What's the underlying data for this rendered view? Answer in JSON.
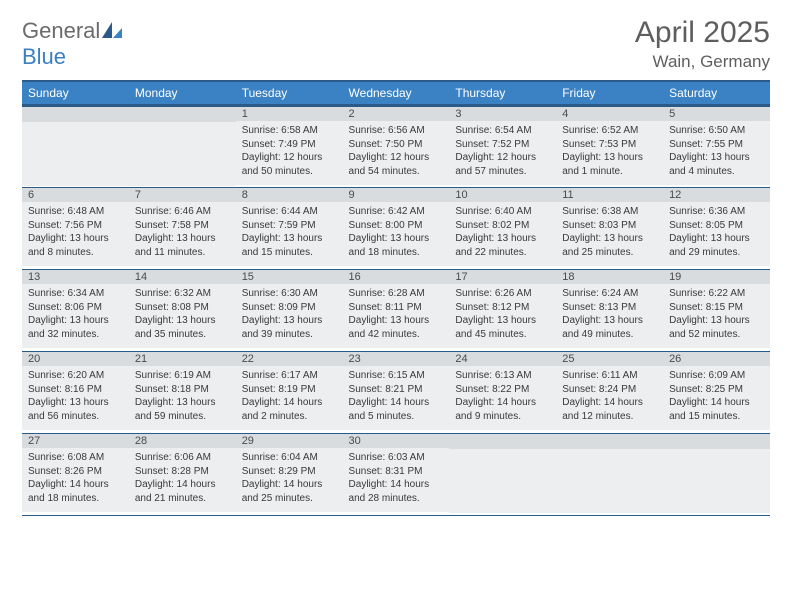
{
  "brand": {
    "part1": "General",
    "part2": "Blue"
  },
  "title": "April 2025",
  "location": "Wain, Germany",
  "colors": {
    "header_bg": "#3b82c4",
    "header_border": "#2a5a8a",
    "daynum_bg": "#d9dcde",
    "body_bg": "#eceeef",
    "text": "#3a3a3a",
    "title_color": "#5e5e5e"
  },
  "weekdays": [
    "Sunday",
    "Monday",
    "Tuesday",
    "Wednesday",
    "Thursday",
    "Friday",
    "Saturday"
  ],
  "grid": [
    [
      {
        "blank": true
      },
      {
        "blank": true
      },
      {
        "num": "1",
        "sunrise": "Sunrise: 6:58 AM",
        "sunset": "Sunset: 7:49 PM",
        "daylight": "Daylight: 12 hours and 50 minutes."
      },
      {
        "num": "2",
        "sunrise": "Sunrise: 6:56 AM",
        "sunset": "Sunset: 7:50 PM",
        "daylight": "Daylight: 12 hours and 54 minutes."
      },
      {
        "num": "3",
        "sunrise": "Sunrise: 6:54 AM",
        "sunset": "Sunset: 7:52 PM",
        "daylight": "Daylight: 12 hours and 57 minutes."
      },
      {
        "num": "4",
        "sunrise": "Sunrise: 6:52 AM",
        "sunset": "Sunset: 7:53 PM",
        "daylight": "Daylight: 13 hours and 1 minute."
      },
      {
        "num": "5",
        "sunrise": "Sunrise: 6:50 AM",
        "sunset": "Sunset: 7:55 PM",
        "daylight": "Daylight: 13 hours and 4 minutes."
      }
    ],
    [
      {
        "num": "6",
        "sunrise": "Sunrise: 6:48 AM",
        "sunset": "Sunset: 7:56 PM",
        "daylight": "Daylight: 13 hours and 8 minutes."
      },
      {
        "num": "7",
        "sunrise": "Sunrise: 6:46 AM",
        "sunset": "Sunset: 7:58 PM",
        "daylight": "Daylight: 13 hours and 11 minutes."
      },
      {
        "num": "8",
        "sunrise": "Sunrise: 6:44 AM",
        "sunset": "Sunset: 7:59 PM",
        "daylight": "Daylight: 13 hours and 15 minutes."
      },
      {
        "num": "9",
        "sunrise": "Sunrise: 6:42 AM",
        "sunset": "Sunset: 8:00 PM",
        "daylight": "Daylight: 13 hours and 18 minutes."
      },
      {
        "num": "10",
        "sunrise": "Sunrise: 6:40 AM",
        "sunset": "Sunset: 8:02 PM",
        "daylight": "Daylight: 13 hours and 22 minutes."
      },
      {
        "num": "11",
        "sunrise": "Sunrise: 6:38 AM",
        "sunset": "Sunset: 8:03 PM",
        "daylight": "Daylight: 13 hours and 25 minutes."
      },
      {
        "num": "12",
        "sunrise": "Sunrise: 6:36 AM",
        "sunset": "Sunset: 8:05 PM",
        "daylight": "Daylight: 13 hours and 29 minutes."
      }
    ],
    [
      {
        "num": "13",
        "sunrise": "Sunrise: 6:34 AM",
        "sunset": "Sunset: 8:06 PM",
        "daylight": "Daylight: 13 hours and 32 minutes."
      },
      {
        "num": "14",
        "sunrise": "Sunrise: 6:32 AM",
        "sunset": "Sunset: 8:08 PM",
        "daylight": "Daylight: 13 hours and 35 minutes."
      },
      {
        "num": "15",
        "sunrise": "Sunrise: 6:30 AM",
        "sunset": "Sunset: 8:09 PM",
        "daylight": "Daylight: 13 hours and 39 minutes."
      },
      {
        "num": "16",
        "sunrise": "Sunrise: 6:28 AM",
        "sunset": "Sunset: 8:11 PM",
        "daylight": "Daylight: 13 hours and 42 minutes."
      },
      {
        "num": "17",
        "sunrise": "Sunrise: 6:26 AM",
        "sunset": "Sunset: 8:12 PM",
        "daylight": "Daylight: 13 hours and 45 minutes."
      },
      {
        "num": "18",
        "sunrise": "Sunrise: 6:24 AM",
        "sunset": "Sunset: 8:13 PM",
        "daylight": "Daylight: 13 hours and 49 minutes."
      },
      {
        "num": "19",
        "sunrise": "Sunrise: 6:22 AM",
        "sunset": "Sunset: 8:15 PM",
        "daylight": "Daylight: 13 hours and 52 minutes."
      }
    ],
    [
      {
        "num": "20",
        "sunrise": "Sunrise: 6:20 AM",
        "sunset": "Sunset: 8:16 PM",
        "daylight": "Daylight: 13 hours and 56 minutes."
      },
      {
        "num": "21",
        "sunrise": "Sunrise: 6:19 AM",
        "sunset": "Sunset: 8:18 PM",
        "daylight": "Daylight: 13 hours and 59 minutes."
      },
      {
        "num": "22",
        "sunrise": "Sunrise: 6:17 AM",
        "sunset": "Sunset: 8:19 PM",
        "daylight": "Daylight: 14 hours and 2 minutes."
      },
      {
        "num": "23",
        "sunrise": "Sunrise: 6:15 AM",
        "sunset": "Sunset: 8:21 PM",
        "daylight": "Daylight: 14 hours and 5 minutes."
      },
      {
        "num": "24",
        "sunrise": "Sunrise: 6:13 AM",
        "sunset": "Sunset: 8:22 PM",
        "daylight": "Daylight: 14 hours and 9 minutes."
      },
      {
        "num": "25",
        "sunrise": "Sunrise: 6:11 AM",
        "sunset": "Sunset: 8:24 PM",
        "daylight": "Daylight: 14 hours and 12 minutes."
      },
      {
        "num": "26",
        "sunrise": "Sunrise: 6:09 AM",
        "sunset": "Sunset: 8:25 PM",
        "daylight": "Daylight: 14 hours and 15 minutes."
      }
    ],
    [
      {
        "num": "27",
        "sunrise": "Sunrise: 6:08 AM",
        "sunset": "Sunset: 8:26 PM",
        "daylight": "Daylight: 14 hours and 18 minutes."
      },
      {
        "num": "28",
        "sunrise": "Sunrise: 6:06 AM",
        "sunset": "Sunset: 8:28 PM",
        "daylight": "Daylight: 14 hours and 21 minutes."
      },
      {
        "num": "29",
        "sunrise": "Sunrise: 6:04 AM",
        "sunset": "Sunset: 8:29 PM",
        "daylight": "Daylight: 14 hours and 25 minutes."
      },
      {
        "num": "30",
        "sunrise": "Sunrise: 6:03 AM",
        "sunset": "Sunset: 8:31 PM",
        "daylight": "Daylight: 14 hours and 28 minutes."
      },
      {
        "blank": true
      },
      {
        "blank": true
      },
      {
        "blank": true
      }
    ]
  ]
}
